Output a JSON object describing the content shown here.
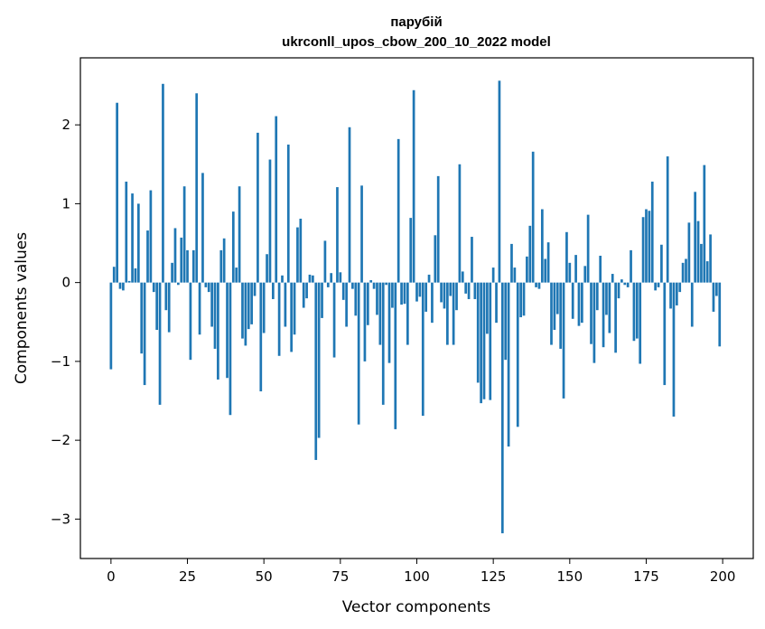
{
  "chart_data": {
    "type": "bar",
    "title": "парубій",
    "subtitle": "ukrconll_upos_cbow_200_10_2022 model",
    "xlabel": "Vector components",
    "ylabel": "Components values",
    "xlim": [
      -10,
      210
    ],
    "ylim": [
      -3.5,
      2.85
    ],
    "xticks": [
      0,
      25,
      50,
      75,
      100,
      125,
      150,
      175,
      200
    ],
    "yticks": [
      -3,
      -2,
      -1,
      0,
      1,
      2
    ],
    "bar_color": "#1f77b4",
    "grid": false,
    "x": [
      0,
      1,
      2,
      3,
      4,
      5,
      6,
      7,
      8,
      9,
      10,
      11,
      12,
      13,
      14,
      15,
      16,
      17,
      18,
      19,
      20,
      21,
      22,
      23,
      24,
      25,
      26,
      27,
      28,
      29,
      30,
      31,
      32,
      33,
      34,
      35,
      36,
      37,
      38,
      39,
      40,
      41,
      42,
      43,
      44,
      45,
      46,
      47,
      48,
      49,
      50,
      51,
      52,
      53,
      54,
      55,
      56,
      57,
      58,
      59,
      60,
      61,
      62,
      63,
      64,
      65,
      66,
      67,
      68,
      69,
      70,
      71,
      72,
      73,
      74,
      75,
      76,
      77,
      78,
      79,
      80,
      81,
      82,
      83,
      84,
      85,
      86,
      87,
      88,
      89,
      90,
      91,
      92,
      93,
      94,
      95,
      96,
      97,
      98,
      99,
      100,
      101,
      102,
      103,
      104,
      105,
      106,
      107,
      108,
      109,
      110,
      111,
      112,
      113,
      114,
      115,
      116,
      117,
      118,
      119,
      120,
      121,
      122,
      123,
      124,
      125,
      126,
      127,
      128,
      129,
      130,
      131,
      132,
      133,
      134,
      135,
      136,
      137,
      138,
      139,
      140,
      141,
      142,
      143,
      144,
      145,
      146,
      147,
      148,
      149,
      150,
      151,
      152,
      153,
      154,
      155,
      156,
      157,
      158,
      159,
      160,
      161,
      162,
      163,
      164,
      165,
      166,
      167,
      168,
      169,
      170,
      171,
      172,
      173,
      174,
      175,
      176,
      177,
      178,
      179,
      180,
      181,
      182,
      183,
      184,
      185,
      186,
      187,
      188,
      189,
      190,
      191,
      192,
      193,
      194,
      195,
      196,
      197,
      198,
      199
    ],
    "values": [
      -1.1,
      0.2,
      2.28,
      -0.08,
      -0.1,
      1.28,
      0.02,
      1.13,
      0.18,
      1.0,
      -0.9,
      -1.3,
      0.66,
      1.17,
      -0.12,
      -0.6,
      -1.55,
      2.52,
      -0.35,
      -0.63,
      0.25,
      0.69,
      -0.03,
      0.57,
      1.22,
      0.41,
      -0.98,
      0.41,
      2.4,
      -0.66,
      1.39,
      -0.06,
      -0.12,
      -0.56,
      -0.84,
      -1.23,
      0.41,
      0.56,
      -1.21,
      -1.68,
      0.9,
      0.19,
      1.22,
      -0.71,
      -0.8,
      -0.59,
      -0.53,
      -0.17,
      1.9,
      -1.38,
      -0.64,
      0.36,
      1.56,
      -0.21,
      2.11,
      -0.93,
      0.09,
      -0.56,
      1.75,
      -0.88,
      -0.66,
      0.7,
      0.81,
      -0.32,
      -0.2,
      0.1,
      0.09,
      -2.25,
      -1.97,
      -0.45,
      0.53,
      -0.06,
      0.12,
      -0.95,
      1.21,
      0.13,
      -0.22,
      -0.56,
      1.97,
      -0.08,
      -0.42,
      -1.8,
      1.23,
      -1.0,
      -0.54,
      0.03,
      -0.08,
      -0.41,
      -0.79,
      -1.55,
      -0.03,
      -1.02,
      -0.32,
      -1.86,
      1.82,
      -0.28,
      -0.27,
      -0.79,
      0.82,
      2.44,
      -0.24,
      -0.18,
      -1.69,
      -0.37,
      0.1,
      -0.51,
      0.6,
      1.35,
      -0.25,
      -0.33,
      -0.79,
      -0.17,
      -0.79,
      -0.35,
      1.5,
      0.14,
      -0.14,
      -0.21,
      0.58,
      -0.21,
      -1.27,
      -1.53,
      -1.48,
      -0.65,
      -1.49,
      0.19,
      -0.51,
      2.56,
      -3.18,
      -0.98,
      -2.08,
      0.49,
      0.19,
      -1.83,
      -0.44,
      -0.42,
      0.33,
      0.72,
      1.66,
      -0.06,
      -0.08,
      0.93,
      0.3,
      0.51,
      -0.79,
      -0.6,
      -0.4,
      -0.84,
      -1.47,
      0.64,
      0.25,
      -0.46,
      0.35,
      -0.55,
      -0.51,
      0.21,
      0.86,
      -0.78,
      -1.02,
      -0.35,
      0.34,
      -0.82,
      -0.41,
      -0.64,
      0.11,
      -0.89,
      -0.2,
      0.04,
      -0.03,
      -0.06,
      0.41,
      -0.74,
      -0.71,
      -1.03,
      0.83,
      0.93,
      0.91,
      1.28,
      -0.1,
      -0.06,
      0.48,
      -1.3,
      1.6,
      -0.33,
      -1.7,
      -0.29,
      -0.12,
      0.25,
      0.3,
      0.76,
      -0.56,
      1.15,
      0.78,
      0.49,
      1.49,
      0.27,
      0.61,
      -0.37,
      -0.17,
      -0.81
    ]
  }
}
